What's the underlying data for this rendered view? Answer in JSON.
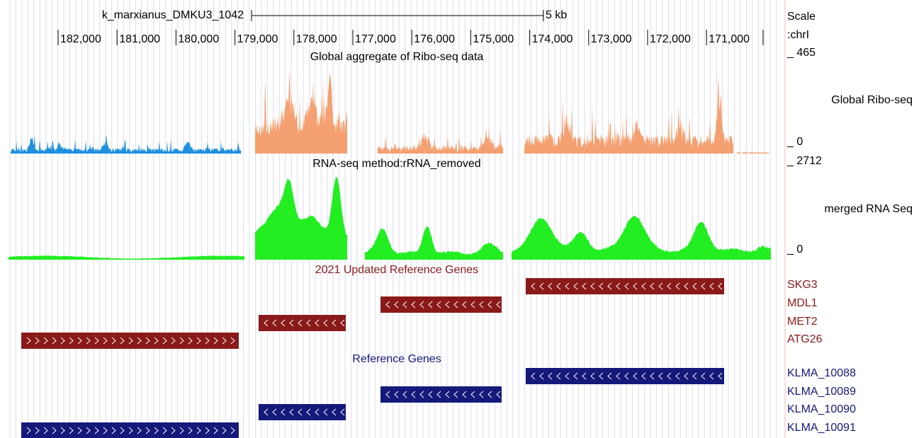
{
  "scale": {
    "label": "k_marxianus_DMKU3_1042",
    "size": "5 kb",
    "side_label": "Scale",
    "chrom": ":chrI"
  },
  "coordinates": [
    "182,000",
    "181,000",
    "180,000",
    "179,000",
    "178,000",
    "177,000",
    "176,000",
    "175,000",
    "174,000",
    "173,000",
    "172,000",
    "171,000"
  ],
  "ribo_track": {
    "title": "Global aggregate of Ribo-seq data",
    "label": "Global Ribo-seq",
    "max": "_ 465",
    "min": "_ 0"
  },
  "rna_track": {
    "title": "RNA-seq method:rRNA_removed",
    "label": "merged RNA Seq",
    "max": "_ 2712",
    "min": "_ 0"
  },
  "gene_tracks": [
    {
      "title": "2021 Updated Reference Genes",
      "genes": [
        "SKG3",
        "MDL1",
        "MET2",
        "ATG26"
      ]
    },
    {
      "title": "Reference Genes",
      "genes": [
        "KLMA_10088",
        "KLMA_10089",
        "KLMA_10090",
        "KLMA_10091"
      ]
    }
  ]
}
